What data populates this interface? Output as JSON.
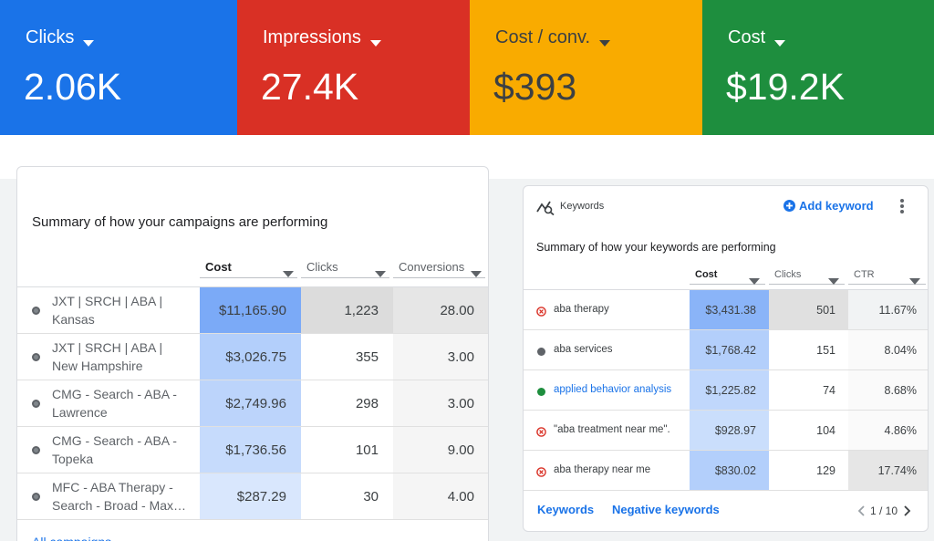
{
  "tiles": [
    {
      "label": "Clicks",
      "value": "2.06K"
    },
    {
      "label": "Impressions",
      "value": "27.4K"
    },
    {
      "label": "Cost / conv.",
      "value": "$393"
    },
    {
      "label": "Cost",
      "value": "$19.2K"
    }
  ],
  "campaigns": {
    "subtitle": "Summary of how your campaigns are performing",
    "columns": [
      "Cost",
      "Clicks",
      "Conversions"
    ],
    "rows": [
      {
        "name": "JXT | SRCH | ABA | Kansas",
        "cells": [
          "$11,165.90",
          "1,223",
          "28.00"
        ]
      },
      {
        "name": "JXT | SRCH | ABA | New Hampshire",
        "cells": [
          "$3,026.75",
          "355",
          "3.00"
        ]
      },
      {
        "name": "CMG - Search - ABA - Lawrence",
        "cells": [
          "$2,749.96",
          "298",
          "3.00"
        ]
      },
      {
        "name": "CMG - Search - ABA - Topeka",
        "cells": [
          "$1,736.56",
          "101",
          "9.00"
        ]
      },
      {
        "name": "MFC - ABA Therapy - Search - Broad - Max…",
        "cells": [
          "$287.29",
          "30",
          "4.00"
        ]
      }
    ],
    "footer_link": "All campaigns"
  },
  "keywords": {
    "title": "Keywords",
    "add_button": "Add keyword",
    "subtitle": "Summary of how your keywords are performing",
    "columns": [
      "Cost",
      "Clicks",
      "CTR"
    ],
    "rows": [
      {
        "keyword": "aba therapy",
        "status": "removed",
        "cells": [
          "$3,431.38",
          "501",
          "11.67%"
        ]
      },
      {
        "keyword": "aba services",
        "status": "paused",
        "cells": [
          "$1,768.42",
          "151",
          "8.04%"
        ]
      },
      {
        "keyword": "applied behavior analysis",
        "status": "active",
        "cells": [
          "$1,225.82",
          "74",
          "8.68%"
        ]
      },
      {
        "keyword": "\"aba treatment near me\".",
        "status": "removed",
        "cells": [
          "$928.97",
          "104",
          "4.86%"
        ]
      },
      {
        "keyword": "aba therapy near me",
        "status": "removed",
        "cells": [
          "$830.02",
          "129",
          "17.74%"
        ]
      }
    ],
    "footer_links": [
      "Keywords",
      "Negative keywords"
    ],
    "pager": "1 / 10"
  }
}
